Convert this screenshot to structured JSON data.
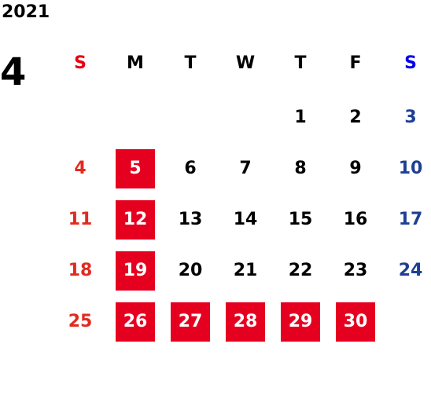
{
  "header": {
    "year": "2021",
    "month": "4"
  },
  "colors": {
    "sunday": "#e02b20",
    "saturday": "#1d3f94",
    "weekday": "#000000",
    "holiday_bg": "#e60020",
    "holiday_text": "#ffffff"
  },
  "weekdays": [
    "S",
    "M",
    "T",
    "W",
    "T",
    "F",
    "S"
  ],
  "weekday_colors": [
    "#e60012",
    "#000000",
    "#000000",
    "#000000",
    "#000000",
    "#000000",
    "#0000ee"
  ],
  "weeks": [
    [
      null,
      null,
      null,
      null,
      {
        "d": "1"
      },
      {
        "d": "2"
      },
      {
        "d": "3"
      }
    ],
    [
      {
        "d": "4"
      },
      {
        "d": "5",
        "holiday": true
      },
      {
        "d": "6"
      },
      {
        "d": "7"
      },
      {
        "d": "8"
      },
      {
        "d": "9"
      },
      {
        "d": "10"
      }
    ],
    [
      {
        "d": "11"
      },
      {
        "d": "12",
        "holiday": true
      },
      {
        "d": "13"
      },
      {
        "d": "14"
      },
      {
        "d": "15"
      },
      {
        "d": "16"
      },
      {
        "d": "17"
      }
    ],
    [
      {
        "d": "18"
      },
      {
        "d": "19",
        "holiday": true
      },
      {
        "d": "20"
      },
      {
        "d": "21"
      },
      {
        "d": "22"
      },
      {
        "d": "23"
      },
      {
        "d": "24"
      }
    ],
    [
      {
        "d": "25"
      },
      {
        "d": "26",
        "holiday": true
      },
      {
        "d": "27",
        "holiday": true
      },
      {
        "d": "28",
        "holiday": true
      },
      {
        "d": "29",
        "holiday": true
      },
      {
        "d": "30",
        "holiday": true
      },
      null
    ]
  ]
}
